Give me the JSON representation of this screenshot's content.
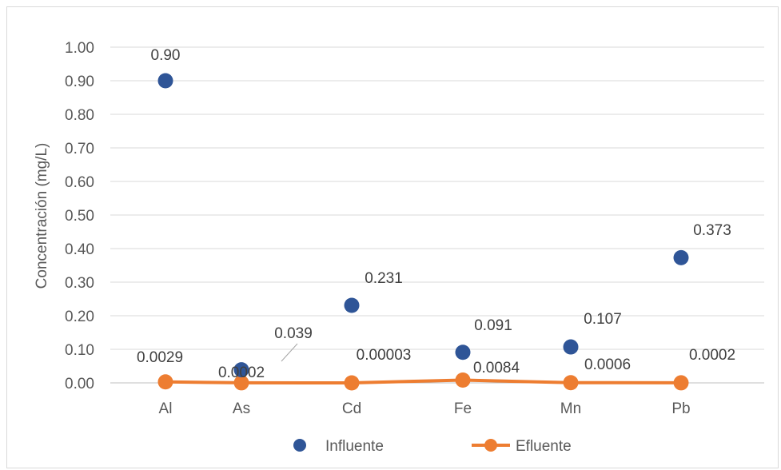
{
  "chart_data": {
    "type": "line",
    "title": "",
    "xlabel": "",
    "ylabel": "Concentración (mg/L)",
    "categories": [
      "Al",
      "As",
      "Cd",
      "Fe",
      "Mn",
      "Pb"
    ],
    "ylim": [
      0,
      1.0
    ],
    "yticks": [
      "0.00",
      "0.10",
      "0.20",
      "0.30",
      "0.40",
      "0.50",
      "0.60",
      "0.70",
      "0.80",
      "0.90",
      "1.00"
    ],
    "grid": true,
    "legend_position": "bottom",
    "series": [
      {
        "name": "Influente",
        "style": "markers",
        "color": "#2f5597",
        "categories": [
          "Al",
          "Cd",
          "Fe",
          "Mn",
          "Pb",
          "As"
        ],
        "values": [
          0.9,
          0.231,
          0.091,
          0.107,
          0.373,
          0.039
        ],
        "labels": [
          "0.90",
          "0.231",
          "0.091",
          "0.107",
          "0.373",
          "0.039"
        ]
      },
      {
        "name": "Efluente",
        "style": "line-markers",
        "color": "#ed7d31",
        "categories": [
          "Al",
          "As",
          "Cd",
          "Fe",
          "Mn",
          "Pb"
        ],
        "values": [
          0.0029,
          0.0002,
          3e-05,
          0.0084,
          0.0006,
          0.0002
        ],
        "labels": [
          "0.0029",
          "0.0002",
          "0.00003",
          "0.0084",
          "0.0006",
          "0.0002"
        ]
      }
    ]
  }
}
